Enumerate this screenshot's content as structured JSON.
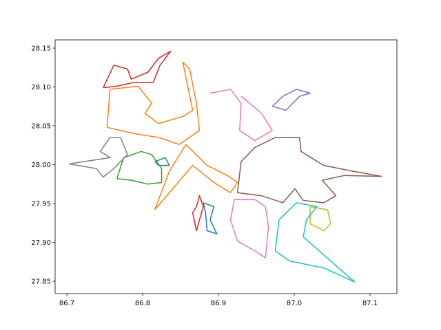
{
  "chart_data": {
    "type": "line",
    "xlim": [
      86.6845,
      87.1355
    ],
    "ylim": [
      27.8341,
      28.1606
    ],
    "xticks": [
      86.7,
      86.8,
      86.9,
      {
        "value": 87,
        "label": "87.0"
      },
      87.1
    ],
    "yticks": [
      27.85,
      {
        "value": 27.9,
        "label": "27.90"
      },
      27.95,
      {
        "value": 28,
        "label": "28.00"
      },
      28.05,
      {
        "value": 28.1,
        "label": "28.10"
      },
      28.15
    ],
    "series": [
      {
        "color": "#1f77b4",
        "x": [
          86.88,
          86.894,
          86.889,
          86.898,
          86.885,
          86.883,
          86.88,
          null,
          86.816,
          86.83,
          86.835,
          86.821,
          86.816
        ],
        "y": [
          27.951,
          27.946,
          27.929,
          27.911,
          27.915,
          27.938,
          27.951,
          null,
          28.004,
          28.009,
          27.999,
          27.999,
          28.004
        ]
      },
      {
        "color": "#ff7f0e",
        "x": [
          86.753,
          86.757,
          86.794,
          86.812,
          86.803,
          86.821,
          86.853,
          86.866,
          86.853,
          86.862,
          86.871,
          86.875,
          86.848,
          86.821,
          86.794,
          86.771,
          86.753,
          null,
          86.816,
          86.835,
          86.857,
          86.885,
          86.912,
          86.925,
          86.916,
          86.894,
          86.866,
          86.816
        ],
        "y": [
          28.048,
          28.097,
          28.101,
          28.079,
          28.066,
          28.053,
          28.062,
          28.07,
          28.132,
          28.123,
          28.079,
          28.044,
          28.026,
          28.035,
          28.039,
          28.044,
          28.048,
          null,
          27.942,
          27.991,
          28.026,
          27.999,
          27.986,
          27.977,
          27.964,
          27.977,
          27.999,
          27.942
        ]
      },
      {
        "color": "#2ca02c",
        "x": [
          86.766,
          86.775,
          86.798,
          86.812,
          86.825,
          86.825,
          86.807,
          86.785,
          86.766
        ],
        "y": [
          27.982,
          28.009,
          28.017,
          28.013,
          27.995,
          27.977,
          27.975,
          27.98,
          27.982
        ]
      },
      {
        "color": "#d62728",
        "x": [
          86.748,
          86.762,
          86.78,
          86.785,
          86.807,
          86.821,
          86.837,
          86.823,
          86.814,
          86.789,
          86.766,
          86.748,
          null,
          86.871,
          86.875,
          86.88,
          86.871,
          86.866,
          86.871
        ],
        "y": [
          28.099,
          28.128,
          28.123,
          28.11,
          28.119,
          28.137,
          28.146,
          28.128,
          28.106,
          28.106,
          28.101,
          28.099,
          null,
          27.946,
          27.96,
          27.946,
          27.915,
          27.938,
          27.946
        ]
      },
      {
        "color": "#9467bd",
        "x": [
          86.971,
          86.985,
          87.003,
          87.021,
          87.007,
          86.989,
          86.971
        ],
        "y": [
          28.075,
          28.088,
          28.097,
          28.092,
          28.088,
          28.07,
          28.075
        ]
      },
      {
        "color": "#8c564b",
        "x": [
          86.93,
          86.925,
          86.957,
          86.985,
          87.001,
          87.012,
          87.039,
          87.055,
          87.037,
          87.066,
          87.115,
          87.075,
          87.039,
          87.009,
          87.007,
          86.975,
          86.948,
          86.93
        ],
        "y": [
          28.004,
          27.964,
          27.96,
          27.951,
          27.969,
          27.954,
          27.951,
          27.96,
          27.98,
          27.986,
          27.985,
          27.992,
          27.999,
          28.017,
          28.035,
          28.035,
          28.022,
          28.004
        ]
      },
      {
        "color": "#e377c2",
        "x": [
          86.921,
          86.948,
          86.962,
          86.966,
          86.962,
          86.948,
          86.925,
          86.916,
          86.921,
          null,
          86.889,
          86.916,
          86.93,
          86.928,
          86.948,
          86.971,
          86.957,
          86.93
        ],
        "y": [
          27.955,
          27.955,
          27.946,
          27.92,
          27.88,
          27.889,
          27.902,
          27.929,
          27.955,
          null,
          28.092,
          28.097,
          28.079,
          28.044,
          28.031,
          28.044,
          28.066,
          28.088
        ]
      },
      {
        "color": "#7f7f7f",
        "x": [
          86.703,
          86.739,
          86.748,
          86.762,
          86.78,
          86.771,
          86.757,
          86.744,
          86.757,
          86.703
        ],
        "y": [
          28.001,
          27.995,
          27.984,
          27.995,
          28.013,
          28.035,
          28.035,
          28.017,
          28.009,
          28.001
        ]
      },
      {
        "color": "#bcbd22",
        "x": [
          87.021,
          87.044,
          87.048,
          87.039,
          87.021,
          87.021
        ],
        "y": [
          27.946,
          27.942,
          27.924,
          27.915,
          27.924,
          27.946
        ]
      },
      {
        "color": "#17becf",
        "x": [
          86.98,
          87.003,
          87.03,
          87.016,
          87.012,
          87.048,
          87.08,
          87.039,
          86.994,
          86.975,
          86.98
        ],
        "y": [
          27.929,
          27.951,
          27.946,
          27.929,
          27.907,
          27.876,
          27.849,
          27.867,
          27.876,
          27.889,
          27.929
        ]
      }
    ]
  }
}
